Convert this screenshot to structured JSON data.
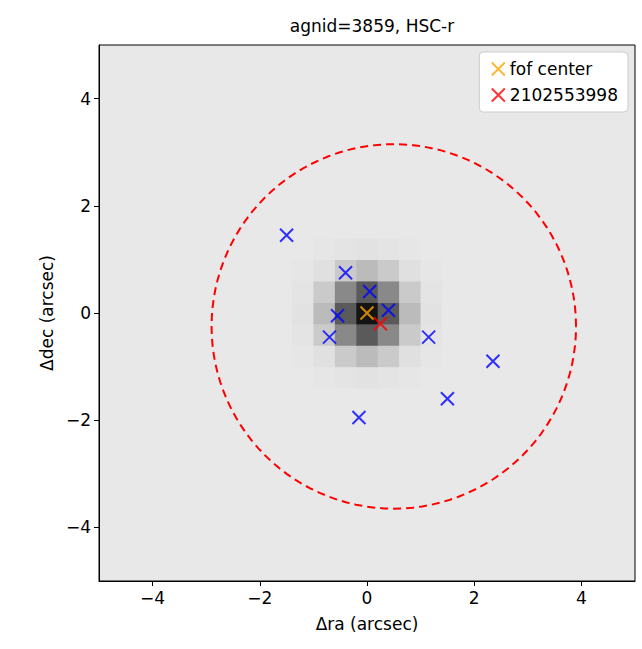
{
  "chart_data": {
    "type": "scatter",
    "title": "agnid=3859, HSC-r",
    "x_label": "Δra (arcsec)",
    "y_label": "Δdec (arcsec)",
    "xlim": [
      -5,
      5
    ],
    "ylim": [
      -5,
      5
    ],
    "xticks": [
      {
        "value": -4,
        "label": "−4"
      },
      {
        "value": -2,
        "label": "−2"
      },
      0,
      2,
      4
    ],
    "yticks": [
      {
        "value": -4,
        "label": "−4"
      },
      {
        "value": -2,
        "label": "−2"
      },
      0,
      2,
      4
    ],
    "grid": false,
    "legend": "upper right",
    "image": {
      "x": [
        -1.6,
        -1.2,
        -0.8,
        -0.4,
        0,
        0.4,
        0.8,
        1.2,
        1.6
      ],
      "y": [
        -1.6,
        -1.2,
        -0.8,
        -0.4,
        0,
        0.4,
        0.8,
        1.2,
        1.6
      ],
      "range": [
        0,
        1
      ],
      "values": [
        [
          0,
          0,
          0,
          0,
          0,
          0,
          0,
          0,
          0
        ],
        [
          0,
          0,
          0.01,
          0.02,
          0.03,
          0.02,
          0.01,
          0,
          0
        ],
        [
          0,
          0.01,
          0.04,
          0.14,
          0.21,
          0.14,
          0.04,
          0.01,
          0
        ],
        [
          0,
          0.02,
          0.14,
          0.45,
          0.67,
          0.45,
          0.14,
          0.02,
          0
        ],
        [
          0,
          0.03,
          0.21,
          0.67,
          1,
          0.67,
          0.21,
          0.03,
          0
        ],
        [
          0,
          0.02,
          0.14,
          0.45,
          0.67,
          0.45,
          0.14,
          0.02,
          0
        ],
        [
          0,
          0.01,
          0.04,
          0.14,
          0.21,
          0.14,
          0.04,
          0.01,
          0
        ],
        [
          0,
          0,
          0.01,
          0.02,
          0.03,
          0.02,
          0.01,
          0,
          0
        ],
        [
          0,
          0,
          0,
          0,
          0,
          0,
          0,
          0,
          0
        ]
      ]
    },
    "circle": {
      "center": [
        0.5,
        -0.25
      ],
      "radius": 3.4,
      "color": "#ff0000",
      "line_style": "dashed"
    },
    "series": [
      {
        "color": "#0000ff",
        "marker": "x",
        "x": [
          -1.5,
          -0.4,
          0.05,
          0.4,
          -0.55,
          -0.7,
          1.15,
          2.35,
          1.5,
          -0.15
        ],
        "values": [
          1.45,
          0.75,
          0.4,
          0.05,
          -0.05,
          -0.45,
          -0.45,
          -0.9,
          -1.6,
          -1.95
        ]
      },
      {
        "name": "fof center",
        "color": "#ffa500",
        "marker": "x",
        "x": [
          0
        ],
        "values": [
          0
        ]
      },
      {
        "name": "2102553998",
        "color": "#ff0000",
        "marker": "x",
        "x": [
          0.25
        ],
        "values": [
          -0.2
        ]
      }
    ]
  }
}
